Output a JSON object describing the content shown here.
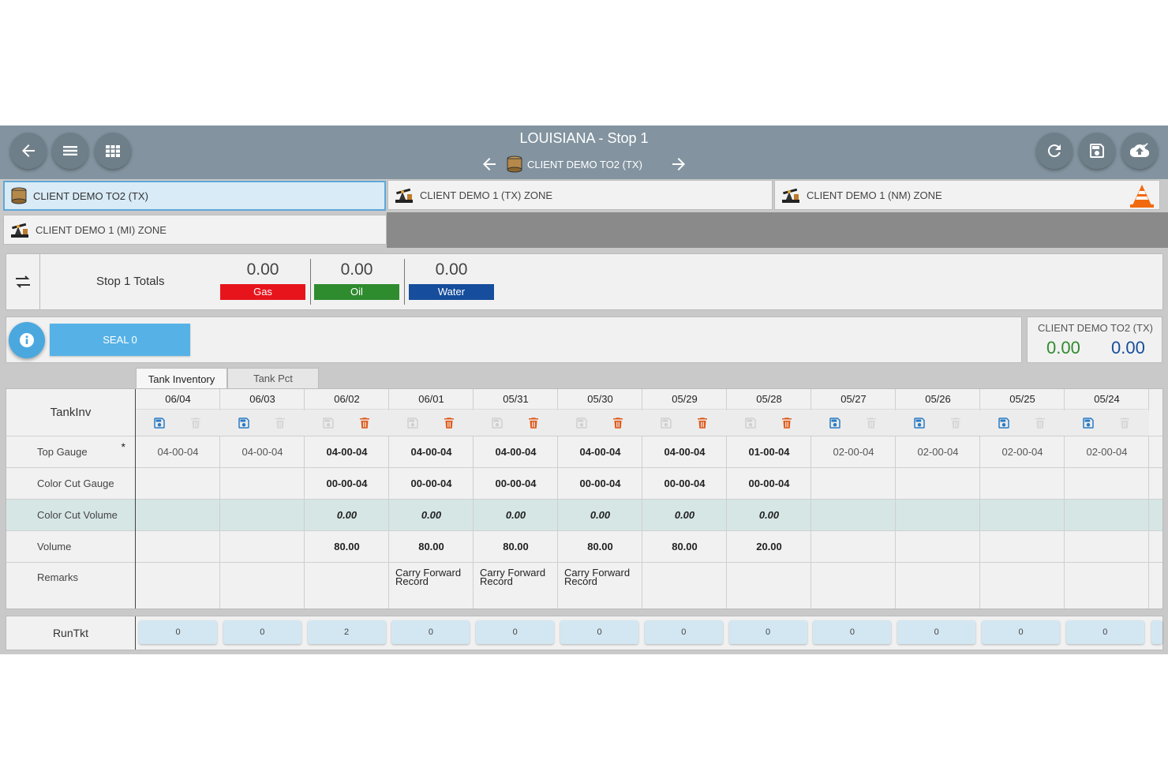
{
  "header": {
    "title": "LOUISIANA - Stop 1",
    "current_tank": "CLIENT DEMO TO2 (TX)",
    "left_buttons": [
      "back-icon",
      "menu-icon",
      "grid-icon"
    ],
    "right_buttons": [
      "refresh-icon",
      "save-icon",
      "cloud-upload-icon"
    ]
  },
  "tank_tabs": [
    {
      "label": "CLIENT DEMO TO2 (TX)",
      "icon": "tank-icon",
      "active": true
    },
    {
      "label": "CLIENT DEMO 1 (TX) ZONE",
      "icon": "pumpjack-icon",
      "active": false
    },
    {
      "label": "CLIENT DEMO 1 (NM) ZONE",
      "icon": "pumpjack-icon",
      "active": false,
      "badge": "traffic-cone-icon"
    },
    {
      "label": "CLIENT DEMO 1 (MI) ZONE",
      "icon": "pumpjack-icon",
      "active": false
    }
  ],
  "totals": {
    "title": "Stop 1 Totals",
    "items": [
      {
        "value": "0.00",
        "label": "Gas",
        "color": "#e8141c"
      },
      {
        "value": "0.00",
        "label": "Oil",
        "color": "#2e8b2e"
      },
      {
        "value": "0.00",
        "label": "Water",
        "color": "#164d9c"
      }
    ]
  },
  "seal": {
    "button_label": "SEAL 0"
  },
  "summary": {
    "name": "CLIENT DEMO TO2 (TX)",
    "value1": "0.00",
    "value2": "0.00",
    "value1_color": "#2e8b2e",
    "value2_color": "#164d9c"
  },
  "grid_tabs": [
    "Tank Inventory",
    "Tank Pct"
  ],
  "grid": {
    "header": "TankInv",
    "row_labels": [
      "Top Gauge",
      "Color Cut Gauge",
      "Color Cut Volume",
      "Volume",
      "Remarks"
    ],
    "required_marker": "*",
    "columns": [
      {
        "date": "06/04",
        "top_gauge": "04-00-04",
        "color_cut_gauge": "",
        "color_cut_volume": "",
        "volume": "",
        "remarks": "",
        "editable": false
      },
      {
        "date": "06/03",
        "top_gauge": "04-00-04",
        "color_cut_gauge": "",
        "color_cut_volume": "",
        "volume": "",
        "remarks": "",
        "editable": false
      },
      {
        "date": "06/02",
        "top_gauge": "04-00-04",
        "color_cut_gauge": "00-00-04",
        "color_cut_volume": "0.00",
        "volume": "80.00",
        "remarks": "",
        "editable": true
      },
      {
        "date": "06/01",
        "top_gauge": "04-00-04",
        "color_cut_gauge": "00-00-04",
        "color_cut_volume": "0.00",
        "volume": "80.00",
        "remarks": "Carry Forward Record",
        "editable": true
      },
      {
        "date": "05/31",
        "top_gauge": "04-00-04",
        "color_cut_gauge": "00-00-04",
        "color_cut_volume": "0.00",
        "volume": "80.00",
        "remarks": "Carry Forward Record",
        "editable": true
      },
      {
        "date": "05/30",
        "top_gauge": "04-00-04",
        "color_cut_gauge": "00-00-04",
        "color_cut_volume": "0.00",
        "volume": "80.00",
        "remarks": "Carry Forward Record",
        "editable": true
      },
      {
        "date": "05/29",
        "top_gauge": "04-00-04",
        "color_cut_gauge": "00-00-04",
        "color_cut_volume": "0.00",
        "volume": "80.00",
        "remarks": "",
        "editable": true
      },
      {
        "date": "05/28",
        "top_gauge": "01-00-04",
        "color_cut_gauge": "00-00-04",
        "color_cut_volume": "0.00",
        "volume": "20.00",
        "remarks": "",
        "editable": true
      },
      {
        "date": "05/27",
        "top_gauge": "02-00-04",
        "color_cut_gauge": "",
        "color_cut_volume": "",
        "volume": "",
        "remarks": "",
        "editable": false
      },
      {
        "date": "05/26",
        "top_gauge": "02-00-04",
        "color_cut_gauge": "",
        "color_cut_volume": "",
        "volume": "",
        "remarks": "",
        "editable": false
      },
      {
        "date": "05/25",
        "top_gauge": "02-00-04",
        "color_cut_gauge": "",
        "color_cut_volume": "",
        "volume": "",
        "remarks": "",
        "editable": false
      },
      {
        "date": "05/24",
        "top_gauge": "02-00-04",
        "color_cut_gauge": "",
        "color_cut_volume": "",
        "volume": "",
        "remarks": "",
        "editable": false
      }
    ]
  },
  "runtkt": {
    "label": "RunTkt",
    "values": [
      "0",
      "0",
      "2",
      "0",
      "0",
      "0",
      "0",
      "0",
      "0",
      "0",
      "0",
      "0"
    ]
  },
  "colors": {
    "header": "#8394a0",
    "save_blue": "#2a7bc4",
    "delete_orange": "#e05a1a",
    "highlight_row": "#d6e6e5"
  }
}
